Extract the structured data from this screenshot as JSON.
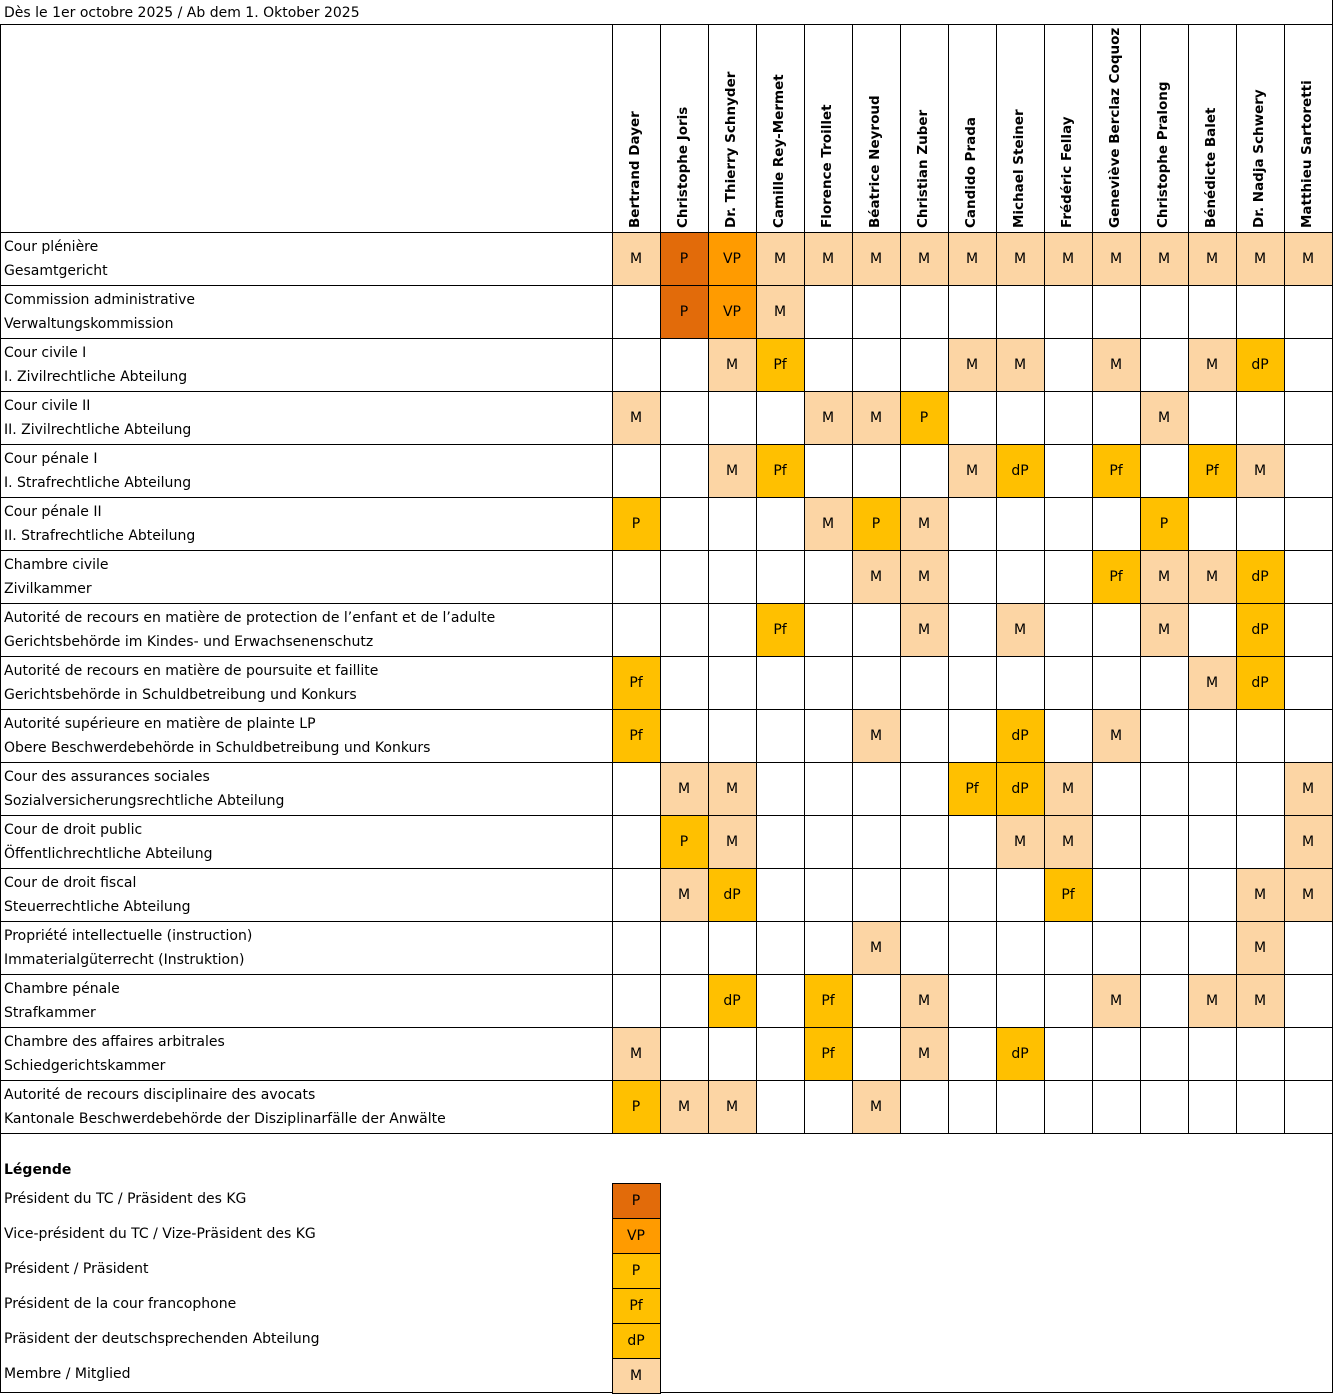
{
  "title": "Dès le 1er octobre 2025 / Ab dem 1. Oktober 2025",
  "colors": {
    "P-top": "#E26B0A",
    "VP": "#FF9B00",
    "P": "#FFC000",
    "Pf": "#FFC000",
    "dP": "#FFC000",
    "M": "#FCD5A4"
  },
  "judges": [
    "Bertrand Dayer",
    "Christophe Joris",
    "Dr. Thierry Schnyder",
    "Camille Rey-Mermet",
    "Florence Troillet",
    "Béatrice Neyroud",
    "Christian Zuber",
    "Candido Prada",
    "Michael Steiner",
    "Frédéric Fellay",
    "Geneviève Berclaz Coquoz",
    "Christophe Pralong",
    "Bénédicte Balet",
    "Dr. Nadja Schwery",
    "Matthieu Sartoretti"
  ],
  "rows": [
    {
      "fr": "Cour plénière",
      "de": "Gesamtgericht",
      "cells": [
        "M",
        "P*",
        "VP",
        "M",
        "M",
        "M",
        "M",
        "M",
        "M",
        "M",
        "M",
        "M",
        "M",
        "M",
        "M"
      ]
    },
    {
      "fr": "Commission administrative",
      "de": "Verwaltungskommission",
      "cells": [
        "",
        "P*",
        "VP",
        "M",
        "",
        "",
        "",
        "",
        "",
        "",
        "",
        "",
        "",
        "",
        ""
      ]
    },
    {
      "fr": "Cour civile I",
      "de": "I. Zivilrechtliche Abteilung",
      "cells": [
        "",
        "",
        "M",
        "Pf",
        "",
        "",
        "",
        "M",
        "M",
        "",
        "M",
        "",
        "M",
        "dP",
        ""
      ]
    },
    {
      "fr": "Cour civile II",
      "de": "II. Zivilrechtliche Abteilung",
      "cells": [
        "M",
        "",
        "",
        "",
        "M",
        "M",
        "P",
        "",
        "",
        "",
        "",
        "M",
        "",
        "",
        ""
      ]
    },
    {
      "fr": "Cour pénale I",
      "de": "I. Strafrechtliche Abteilung",
      "cells": [
        "",
        "",
        "M",
        "Pf",
        "",
        "",
        "",
        "M",
        "dP",
        "",
        "Pf",
        "",
        "Pf",
        "M",
        ""
      ]
    },
    {
      "fr": "Cour pénale II",
      "de": "II. Strafrechtliche Abteilung",
      "cells": [
        "P",
        "",
        "",
        "",
        "M",
        "P",
        "M",
        "",
        "",
        "",
        "",
        "P",
        "",
        "",
        ""
      ]
    },
    {
      "fr": "Chambre civile",
      "de": "Zivilkammer",
      "cells": [
        "",
        "",
        "",
        "",
        "",
        "M",
        "M",
        "",
        "",
        "",
        "Pf",
        "M",
        "M",
        "dP",
        ""
      ]
    },
    {
      "fr": "Autorité de recours en matière de protection de l’enfant et de l’adulte",
      "de": "Gerichtsbehörde im Kindes- und Erwachsenenschutz",
      "cells": [
        "",
        "",
        "",
        "Pf",
        "",
        "",
        "M",
        "",
        "M",
        "",
        "",
        "M",
        "",
        "dP",
        ""
      ]
    },
    {
      "fr": "Autorité de recours en matière de poursuite et faillite",
      "de": "Gerichtsbehörde in Schuldbetreibung und Konkurs",
      "cells": [
        "Pf",
        "",
        "",
        "",
        "",
        "",
        "",
        "",
        "",
        "",
        "",
        "",
        "M",
        "dP",
        ""
      ]
    },
    {
      "fr": "Autorité supérieure en matière de plainte LP",
      "de": "Obere Beschwerdebehörde in Schuldbetreibung und Konkurs",
      "cells": [
        "Pf",
        "",
        "",
        "",
        "",
        "M",
        "",
        "",
        "dP",
        "",
        "M",
        "",
        "",
        "",
        ""
      ]
    },
    {
      "fr": "Cour des assurances sociales",
      "de": "Sozialversicherungsrechtliche Abteilung",
      "cells": [
        "",
        "M",
        "M",
        "",
        "",
        "",
        "",
        "Pf",
        "dP",
        "M",
        "",
        "",
        "",
        "",
        "M"
      ]
    },
    {
      "fr": "Cour de droit public",
      "de": "Öffentlichrechtliche Abteilung",
      "cells": [
        "",
        "P",
        "M",
        "",
        "",
        "",
        "",
        "",
        "M",
        "M",
        "",
        "",
        "",
        "",
        "M"
      ]
    },
    {
      "fr": "Cour de droit fiscal",
      "de": "Steuerrechtliche Abteilung",
      "cells": [
        "",
        "M",
        "dP",
        "",
        "",
        "",
        "",
        "",
        "",
        "Pf",
        "",
        "",
        "",
        "M",
        "M"
      ]
    },
    {
      "fr": "Propriété intellectuelle (instruction)",
      "de": "Immaterialgüterrecht (Instruktion)",
      "cells": [
        "",
        "",
        "",
        "",
        "",
        "M",
        "",
        "",
        "",
        "",
        "",
        "",
        "",
        "M",
        ""
      ]
    },
    {
      "fr": "Chambre pénale",
      "de": "Strafkammer",
      "cells": [
        "",
        "",
        "dP",
        "",
        "Pf",
        "",
        "M",
        "",
        "",
        "",
        "M",
        "",
        "M",
        "M",
        ""
      ]
    },
    {
      "fr": "Chambre des affaires arbitrales",
      "de": "Schiedgerichtskammer",
      "cells": [
        "M",
        "",
        "",
        "",
        "Pf",
        "",
        "M",
        "",
        "dP",
        "",
        "",
        "",
        "",
        "",
        ""
      ]
    },
    {
      "fr": "Autorité de recours disciplinaire des avocats",
      "de": "Kantonale Beschwerdebehörde der Disziplinarfälle der Anwälte",
      "cells": [
        "P",
        "M",
        "M",
        "",
        "",
        "M",
        "",
        "",
        "",
        "",
        "",
        "",
        "",
        "",
        ""
      ]
    }
  ],
  "legend": {
    "title": "Légende",
    "items": [
      {
        "label": "Président du TC / Präsident des KG",
        "code": "P",
        "style": "P*"
      },
      {
        "label": "Vice-président du TC / Vize-Präsident des KG",
        "code": "VP",
        "style": "VP"
      },
      {
        "label": "Président / Präsident",
        "code": "P",
        "style": "P"
      },
      {
        "label": "Président de la cour francophone",
        "code": "Pf",
        "style": "Pf"
      },
      {
        "label": "Präsident der deutschsprechenden Abteilung",
        "code": "dP",
        "style": "dP"
      },
      {
        "label": "Membre / Mitglied",
        "code": "M",
        "style": "M"
      }
    ]
  }
}
